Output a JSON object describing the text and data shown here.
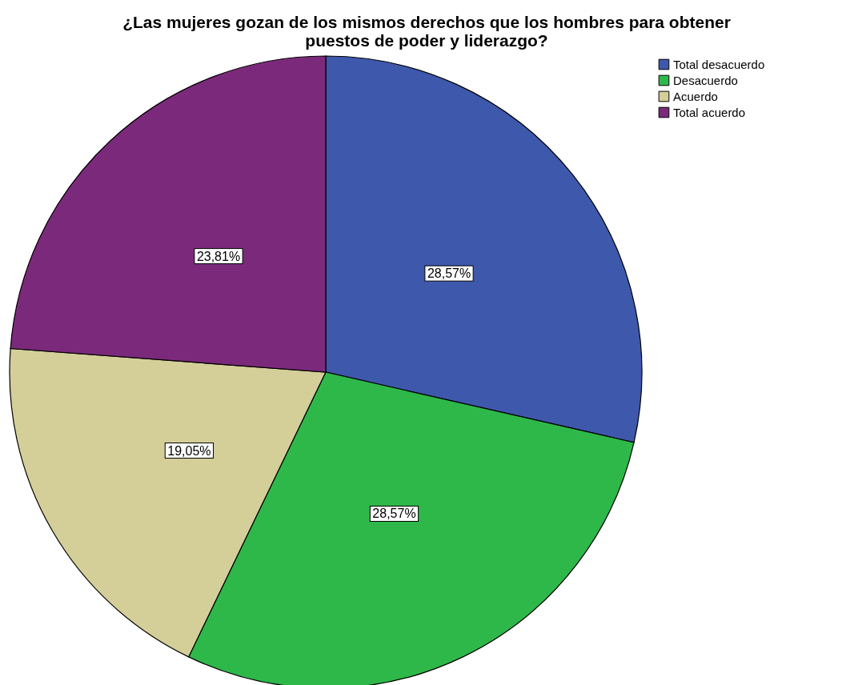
{
  "chart_data": {
    "type": "pie",
    "title": "¿Las mujeres gozan de los mismos derechos que los hombres para obtener puestos de poder y liderazgo?",
    "categories": [
      "Total desacuerdo",
      "Desacuerdo",
      "Acuerdo",
      "Total acuerdo"
    ],
    "values": [
      28.57,
      28.57,
      19.05,
      23.81
    ],
    "colors": [
      "#3e58ac",
      "#2fb84a",
      "#d4ce99",
      "#7b2a7b"
    ],
    "value_labels": [
      "28,57%",
      "28,57%",
      "19,05%",
      "23,81%"
    ],
    "legend": "top right"
  }
}
